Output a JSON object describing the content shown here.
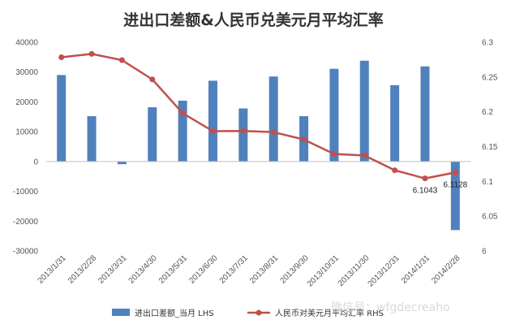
{
  "chart_data": {
    "type": "bar+line",
    "title": "进出口差额&人民币兑美元月平均汇率",
    "categories": [
      "2013/1/31",
      "2013/2/28",
      "2013/3/31",
      "2013/4/30",
      "2013/5/31",
      "2013/6/30",
      "2013/7/31",
      "2013/8/31",
      "2013/9/30",
      "2013/10/31",
      "2013/11/30",
      "2013/12/31",
      "2014/1/31",
      "2014/2/28"
    ],
    "series": [
      {
        "name": "进出口差额_当月 LHS",
        "type": "bar",
        "axis": "left",
        "color": "#4f81bd",
        "values": [
          29000,
          15200,
          -900,
          18200,
          20400,
          27100,
          17800,
          28500,
          15200,
          31100,
          33800,
          25600,
          31900,
          -23000
        ]
      },
      {
        "name": "人民币对美元月平均汇率 RHS",
        "type": "line",
        "axis": "right",
        "color": "#c0504d",
        "values": [
          6.2784,
          6.2832,
          6.2743,
          6.2466,
          6.1981,
          6.1722,
          6.1725,
          6.1708,
          6.1602,
          6.1393,
          6.1373,
          6.116,
          6.1043,
          6.1128
        ]
      }
    ],
    "y_left": {
      "min": -30000,
      "max": 40000,
      "step": 10000,
      "ticks": [
        "40000",
        "30000",
        "20000",
        "10000",
        "0",
        "-10000",
        "-20000",
        "-30000"
      ]
    },
    "y_right": {
      "min": 6.0,
      "max": 6.3,
      "step": 0.05,
      "ticks": [
        "6.3",
        "6.25",
        "6.2",
        "6.15",
        "6.1",
        "6.05",
        "6"
      ]
    },
    "data_labels": [
      {
        "series": 1,
        "index": 12,
        "text": "6.1043"
      },
      {
        "series": 1,
        "index": 13,
        "text": "6.1128"
      }
    ],
    "grid": false,
    "legend_position": "bottom"
  },
  "legend": {
    "bar_label": "进出口差额_当月 LHS",
    "line_label": "人民币对美元月平均汇率 RHS"
  },
  "watermark": "微信号：wfgdecreaho"
}
